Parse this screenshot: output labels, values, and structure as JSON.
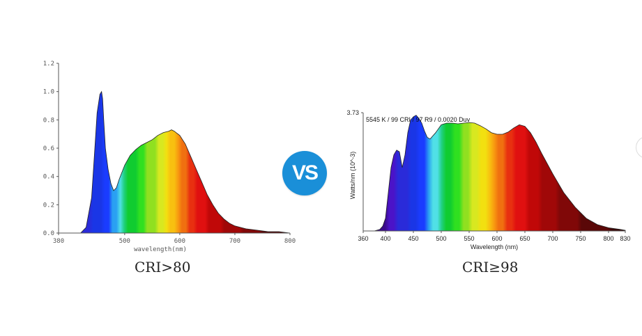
{
  "vs_label": "VS",
  "colors": {
    "badge": "#1a8fd8",
    "axis": "#555555",
    "curve_outline": "#222222"
  },
  "chart_data": [
    {
      "type": "area",
      "caption": "CRI>80",
      "xlabel": "wavelength(nm)",
      "ylabel": "",
      "xlim": [
        380,
        800
      ],
      "ylim": [
        0,
        1.2
      ],
      "x_ticks": [
        "380",
        "500",
        "600",
        "700",
        "800"
      ],
      "y_ticks": [
        "0.0",
        "0.2",
        "0.4",
        "0.6",
        "0.8",
        "1.0",
        "1.2"
      ],
      "x": [
        380,
        420,
        430,
        440,
        445,
        450,
        455,
        458,
        460,
        462,
        465,
        470,
        475,
        480,
        485,
        490,
        500,
        510,
        520,
        530,
        540,
        550,
        560,
        570,
        580,
        585,
        590,
        600,
        610,
        620,
        630,
        640,
        650,
        660,
        670,
        680,
        690,
        700,
        720,
        740,
        760,
        780,
        800
      ],
      "y": [
        0.0,
        0.0,
        0.04,
        0.25,
        0.55,
        0.85,
        0.98,
        1.0,
        0.95,
        0.8,
        0.6,
        0.45,
        0.35,
        0.3,
        0.32,
        0.38,
        0.48,
        0.55,
        0.59,
        0.62,
        0.64,
        0.66,
        0.69,
        0.71,
        0.72,
        0.73,
        0.72,
        0.69,
        0.63,
        0.54,
        0.45,
        0.36,
        0.27,
        0.2,
        0.14,
        0.1,
        0.07,
        0.05,
        0.03,
        0.02,
        0.01,
        0.01,
        0.0
      ]
    },
    {
      "type": "area",
      "caption": "CRI≥98",
      "annotation": "5545 K / 99 CRI / 97 R9 / 0.0020 Duv",
      "xlabel": "Wavelength (nm)",
      "ylabel": "Watts/nm (10^-3)",
      "xlim": [
        360,
        830
      ],
      "ylim": [
        0,
        3.73
      ],
      "x_ticks": [
        "360",
        "400",
        "450",
        "500",
        "550",
        "600",
        "650",
        "700",
        "750",
        "800",
        "830"
      ],
      "y_ticks": [
        "3.73"
      ],
      "x": [
        360,
        380,
        390,
        395,
        400,
        405,
        410,
        415,
        420,
        425,
        430,
        435,
        440,
        445,
        450,
        455,
        460,
        465,
        470,
        475,
        480,
        490,
        500,
        510,
        520,
        530,
        540,
        550,
        560,
        570,
        580,
        590,
        600,
        610,
        620,
        630,
        640,
        650,
        660,
        670,
        680,
        700,
        720,
        740,
        760,
        780,
        800,
        820,
        830
      ],
      "y": [
        0.0,
        0.0,
        0.05,
        0.15,
        0.4,
        1.2,
        2.0,
        2.4,
        2.55,
        2.5,
        2.0,
        2.4,
        3.1,
        3.5,
        3.6,
        3.65,
        3.55,
        3.4,
        3.15,
        2.95,
        2.9,
        3.1,
        3.35,
        3.4,
        3.4,
        3.38,
        3.4,
        3.42,
        3.4,
        3.32,
        3.22,
        3.1,
        3.05,
        3.05,
        3.12,
        3.25,
        3.35,
        3.3,
        3.1,
        2.8,
        2.45,
        1.8,
        1.2,
        0.75,
        0.4,
        0.2,
        0.1,
        0.05,
        0.02
      ]
    }
  ]
}
